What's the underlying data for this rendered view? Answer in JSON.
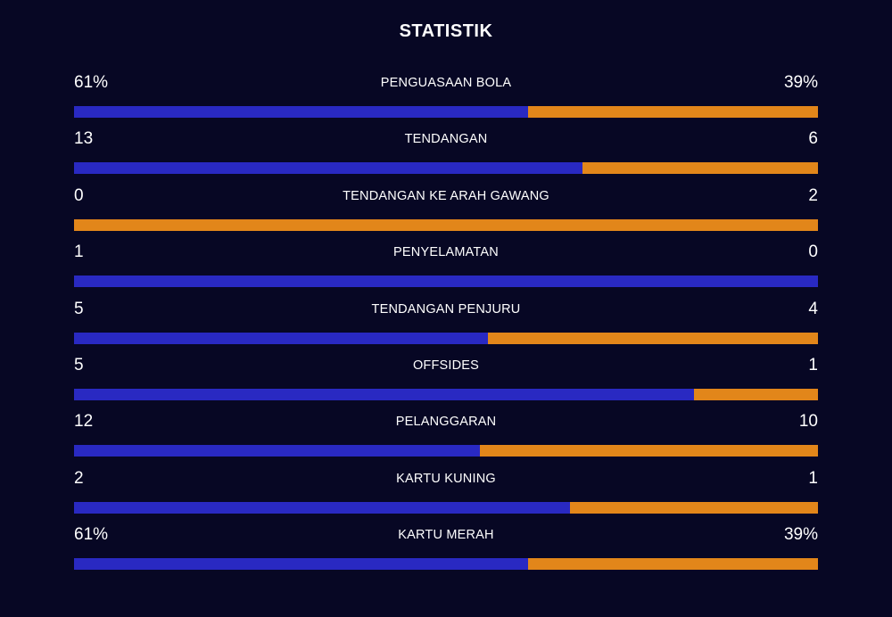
{
  "title": "STATISTIK",
  "colors": {
    "home": "#2929c2",
    "away": "#e2861a",
    "background": "#070724"
  },
  "stats": [
    {
      "label": "PENGUASAAN BOLA",
      "home": "61%",
      "away": "39%",
      "home_share": 0.61
    },
    {
      "label": "TENDANGAN",
      "home": "13",
      "away": "6",
      "home_share": 0.684
    },
    {
      "label": "TENDANGAN KE ARAH GAWANG",
      "home": "0",
      "away": "2",
      "home_share": 0
    },
    {
      "label": "PENYELAMATAN",
      "home": "1",
      "away": "0",
      "home_share": 1
    },
    {
      "label": "TENDANGAN PENJURU",
      "home": "5",
      "away": "4",
      "home_share": 0.556
    },
    {
      "label": "OFFSIDES",
      "home": "5",
      "away": "1",
      "home_share": 0.833
    },
    {
      "label": "PELANGGARAN",
      "home": "12",
      "away": "10",
      "home_share": 0.545
    },
    {
      "label": "KARTU KUNING",
      "home": "2",
      "away": "1",
      "home_share": 0.667
    },
    {
      "label": "KARTU MERAH",
      "home": "61%",
      "away": "39%",
      "home_share": 0.61
    }
  ]
}
